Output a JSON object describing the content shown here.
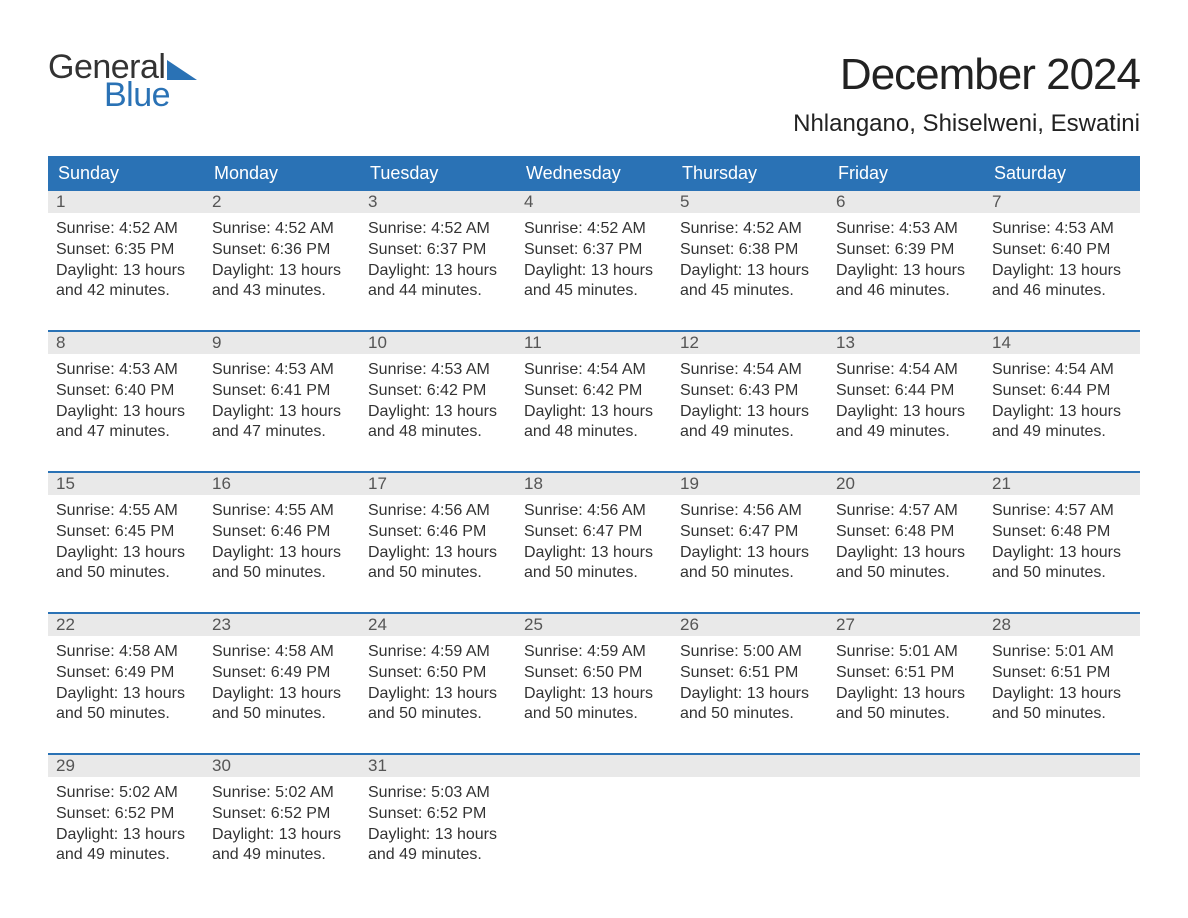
{
  "logo": {
    "line1": "General",
    "line2": "Blue",
    "tri_color": "#2a72b5"
  },
  "title": "December 2024",
  "location": "Nhlangano, Shiselweni, Eswatini",
  "header_bg": "#2a72b5",
  "header_fg": "#ffffff",
  "daynum_bg": "#e9e9e9",
  "daynum_fg": "#555555",
  "text_color": "#333333",
  "separator_color": "#2a72b5",
  "background": "#ffffff",
  "day_names": [
    "Sunday",
    "Monday",
    "Tuesday",
    "Wednesday",
    "Thursday",
    "Friday",
    "Saturday"
  ],
  "weeks": [
    [
      {
        "n": 1,
        "sr": "4:52 AM",
        "ss": "6:35 PM",
        "dh": 13,
        "dm": 42
      },
      {
        "n": 2,
        "sr": "4:52 AM",
        "ss": "6:36 PM",
        "dh": 13,
        "dm": 43
      },
      {
        "n": 3,
        "sr": "4:52 AM",
        "ss": "6:37 PM",
        "dh": 13,
        "dm": 44
      },
      {
        "n": 4,
        "sr": "4:52 AM",
        "ss": "6:37 PM",
        "dh": 13,
        "dm": 45
      },
      {
        "n": 5,
        "sr": "4:52 AM",
        "ss": "6:38 PM",
        "dh": 13,
        "dm": 45
      },
      {
        "n": 6,
        "sr": "4:53 AM",
        "ss": "6:39 PM",
        "dh": 13,
        "dm": 46
      },
      {
        "n": 7,
        "sr": "4:53 AM",
        "ss": "6:40 PM",
        "dh": 13,
        "dm": 46
      }
    ],
    [
      {
        "n": 8,
        "sr": "4:53 AM",
        "ss": "6:40 PM",
        "dh": 13,
        "dm": 47
      },
      {
        "n": 9,
        "sr": "4:53 AM",
        "ss": "6:41 PM",
        "dh": 13,
        "dm": 47
      },
      {
        "n": 10,
        "sr": "4:53 AM",
        "ss": "6:42 PM",
        "dh": 13,
        "dm": 48
      },
      {
        "n": 11,
        "sr": "4:54 AM",
        "ss": "6:42 PM",
        "dh": 13,
        "dm": 48
      },
      {
        "n": 12,
        "sr": "4:54 AM",
        "ss": "6:43 PM",
        "dh": 13,
        "dm": 49
      },
      {
        "n": 13,
        "sr": "4:54 AM",
        "ss": "6:44 PM",
        "dh": 13,
        "dm": 49
      },
      {
        "n": 14,
        "sr": "4:54 AM",
        "ss": "6:44 PM",
        "dh": 13,
        "dm": 49
      }
    ],
    [
      {
        "n": 15,
        "sr": "4:55 AM",
        "ss": "6:45 PM",
        "dh": 13,
        "dm": 50
      },
      {
        "n": 16,
        "sr": "4:55 AM",
        "ss": "6:46 PM",
        "dh": 13,
        "dm": 50
      },
      {
        "n": 17,
        "sr": "4:56 AM",
        "ss": "6:46 PM",
        "dh": 13,
        "dm": 50
      },
      {
        "n": 18,
        "sr": "4:56 AM",
        "ss": "6:47 PM",
        "dh": 13,
        "dm": 50
      },
      {
        "n": 19,
        "sr": "4:56 AM",
        "ss": "6:47 PM",
        "dh": 13,
        "dm": 50
      },
      {
        "n": 20,
        "sr": "4:57 AM",
        "ss": "6:48 PM",
        "dh": 13,
        "dm": 50
      },
      {
        "n": 21,
        "sr": "4:57 AM",
        "ss": "6:48 PM",
        "dh": 13,
        "dm": 50
      }
    ],
    [
      {
        "n": 22,
        "sr": "4:58 AM",
        "ss": "6:49 PM",
        "dh": 13,
        "dm": 50
      },
      {
        "n": 23,
        "sr": "4:58 AM",
        "ss": "6:49 PM",
        "dh": 13,
        "dm": 50
      },
      {
        "n": 24,
        "sr": "4:59 AM",
        "ss": "6:50 PM",
        "dh": 13,
        "dm": 50
      },
      {
        "n": 25,
        "sr": "4:59 AM",
        "ss": "6:50 PM",
        "dh": 13,
        "dm": 50
      },
      {
        "n": 26,
        "sr": "5:00 AM",
        "ss": "6:51 PM",
        "dh": 13,
        "dm": 50
      },
      {
        "n": 27,
        "sr": "5:01 AM",
        "ss": "6:51 PM",
        "dh": 13,
        "dm": 50
      },
      {
        "n": 28,
        "sr": "5:01 AM",
        "ss": "6:51 PM",
        "dh": 13,
        "dm": 50
      }
    ],
    [
      {
        "n": 29,
        "sr": "5:02 AM",
        "ss": "6:52 PM",
        "dh": 13,
        "dm": 49
      },
      {
        "n": 30,
        "sr": "5:02 AM",
        "ss": "6:52 PM",
        "dh": 13,
        "dm": 49
      },
      {
        "n": 31,
        "sr": "5:03 AM",
        "ss": "6:52 PM",
        "dh": 13,
        "dm": 49
      },
      null,
      null,
      null,
      null
    ]
  ],
  "labels": {
    "sunrise": "Sunrise:",
    "sunset": "Sunset:",
    "daylight": "Daylight:",
    "hours": "hours",
    "and": "and",
    "minutes": "minutes."
  }
}
